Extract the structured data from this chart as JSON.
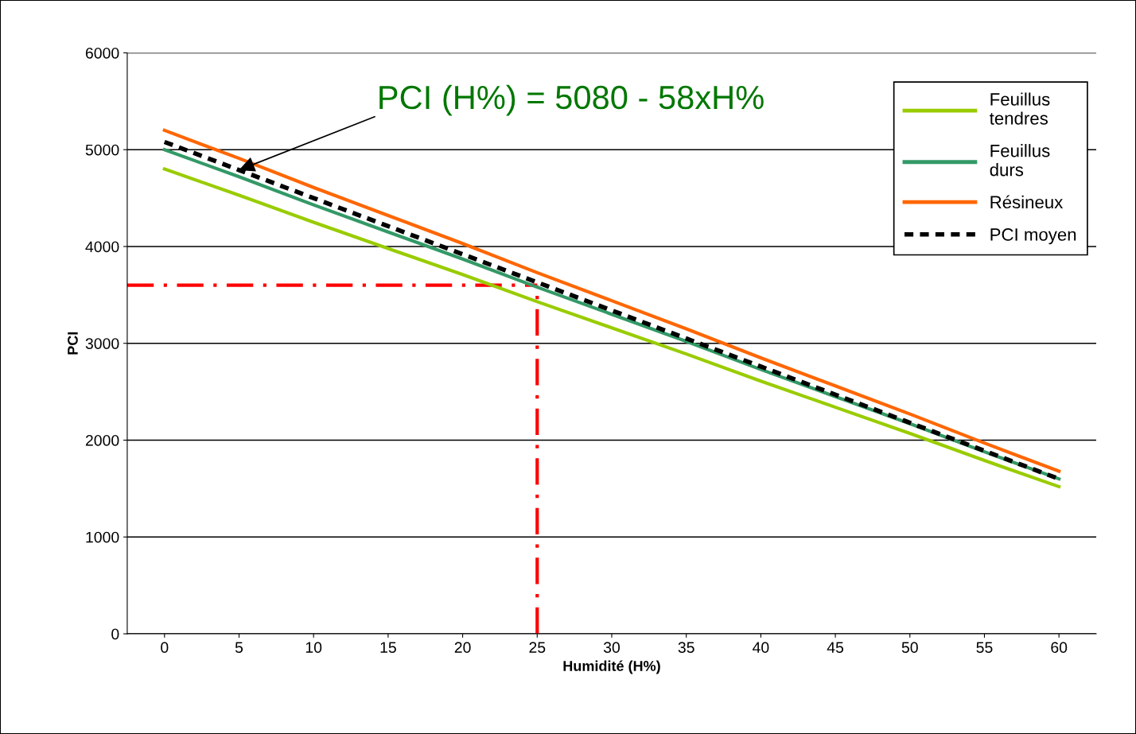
{
  "chart_data": {
    "type": "line",
    "xlabel": "Humidité (H%)",
    "ylabel": "PCI",
    "categories": [
      "0",
      "5",
      "10",
      "15",
      "20",
      "25",
      "30",
      "35",
      "40",
      "45",
      "50",
      "55",
      "60"
    ],
    "series": [
      {
        "name": "Feuillus tendres",
        "color": "#99cc00",
        "values": [
          4800,
          4530,
          4250,
          3980,
          3710,
          3430,
          3160,
          2890,
          2610,
          2340,
          2070,
          1790,
          1520
        ]
      },
      {
        "name": "Feuillus durs",
        "color": "#339966",
        "values": [
          5000,
          4720,
          4430,
          4150,
          3870,
          3580,
          3300,
          3020,
          2730,
          2450,
          2170,
          1880,
          1600
        ]
      },
      {
        "name": "Résineux",
        "color": "#ff6600",
        "values": [
          5200,
          4910,
          4610,
          4320,
          4030,
          3730,
          3440,
          3150,
          2850,
          2560,
          2270,
          1970,
          1680
        ]
      },
      {
        "name": "PCI moyen",
        "color": "#000000",
        "line_style": "dashed",
        "values": [
          5080,
          4790,
          4500,
          4210,
          3920,
          3630,
          3340,
          3050,
          2760,
          2470,
          2180,
          1890,
          1600
        ]
      }
    ],
    "ref_lines": [
      {
        "axis": "y",
        "value": 3600,
        "color": "#ff0000",
        "line_style": "dashdot"
      },
      {
        "axis": "x",
        "value": "25",
        "color": "#ff0000",
        "line_style": "dashdot"
      }
    ],
    "annotations": [
      {
        "text": "PCI (H%) = 5080 - 58xH%",
        "x": "5",
        "y": 4790
      }
    ],
    "ylim": [
      0,
      6000
    ],
    "yticks": [
      0,
      1000,
      2000,
      3000,
      4000,
      5000,
      6000
    ],
    "grid": "y",
    "legend": "top right",
    "marker": "none"
  }
}
